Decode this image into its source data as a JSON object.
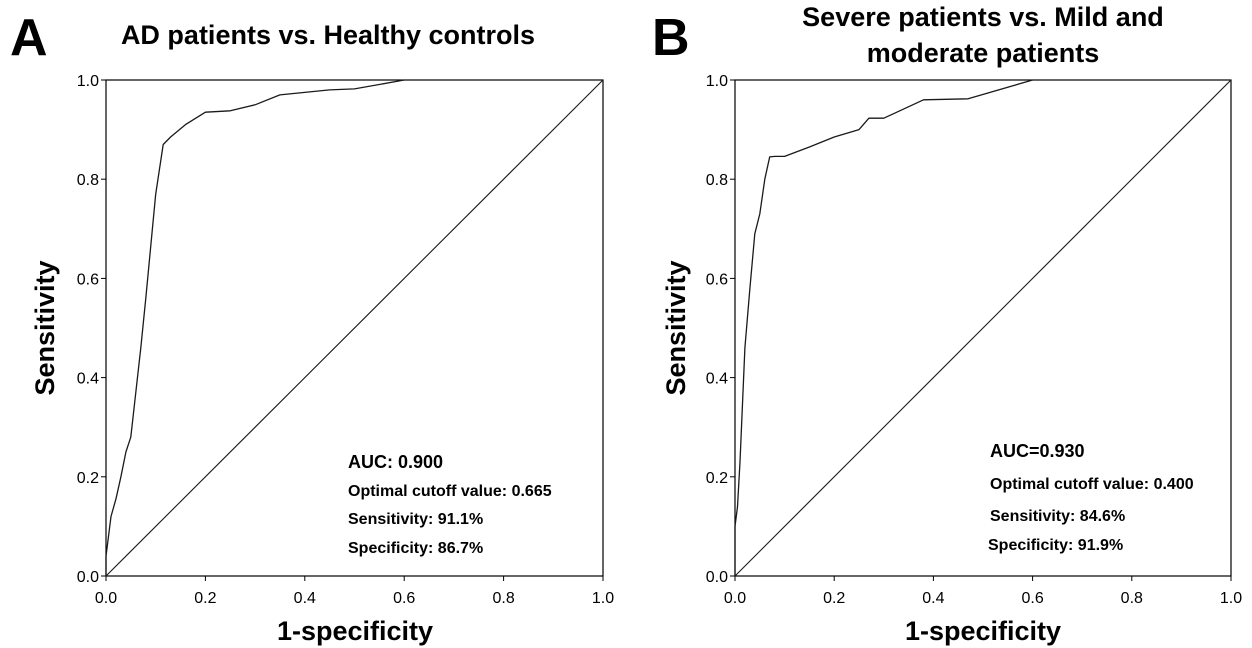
{
  "chart_data": [
    {
      "type": "line",
      "panel": "A",
      "title": "AD patients vs. Healthy controls",
      "title_lines": [
        "AD patients vs. Healthy controls"
      ],
      "xlabel": "1-specificity",
      "ylabel": "Sensitivity",
      "xlim": [
        0,
        1
      ],
      "ylim": [
        0,
        1
      ],
      "xticks": [
        "0.0",
        "0.2",
        "0.4",
        "0.6",
        "0.8",
        "1.0"
      ],
      "yticks": [
        "0.0",
        "0.2",
        "0.4",
        "0.6",
        "0.8",
        "1.0"
      ],
      "grid": false,
      "legend": "none",
      "annotations": [
        "AUC: 0.900",
        "Optimal cutoff value: 0.665",
        "Sensitivity: 91.1%",
        "Specificity: 86.7%"
      ],
      "series": [
        {
          "role": "roc",
          "x": [
            0,
            0,
            0.01,
            0.02,
            0.03,
            0.04,
            0.05,
            0.07,
            0.08,
            0.1,
            0.115,
            0.13,
            0.16,
            0.2,
            0.25,
            0.3,
            0.35,
            0.4,
            0.45,
            0.5,
            0.6
          ],
          "y": [
            0,
            0.04,
            0.12,
            0.155,
            0.2,
            0.25,
            0.28,
            0.46,
            0.56,
            0.77,
            0.87,
            0.885,
            0.91,
            0.935,
            0.938,
            0.95,
            0.97,
            0.975,
            0.98,
            0.982,
            1.0
          ]
        },
        {
          "role": "reference",
          "x": [
            0,
            1
          ],
          "y": [
            0,
            1
          ]
        }
      ]
    },
    {
      "type": "line",
      "panel": "B",
      "title": "Severe patients vs. Mild and moderate patients",
      "title_lines": [
        "Severe patients vs. Mild and",
        "moderate patients"
      ],
      "xlabel": "1-specificity",
      "ylabel": "Sensitivity",
      "xlim": [
        0,
        1
      ],
      "ylim": [
        0,
        1
      ],
      "xticks": [
        "0.0",
        "0.2",
        "0.4",
        "0.6",
        "0.8",
        "1.0"
      ],
      "yticks": [
        "0.0",
        "0.2",
        "0.4",
        "0.6",
        "0.8",
        "1.0"
      ],
      "grid": false,
      "legend": "none",
      "annotations": [
        "AUC=0.930",
        "Optimal cutoff value: 0.400",
        "Sensitivity: 84.6%",
        "Specificity: 91.9%"
      ],
      "series": [
        {
          "role": "roc",
          "x": [
            0,
            0,
            0.005,
            0.01,
            0.02,
            0.03,
            0.04,
            0.05,
            0.06,
            0.07,
            0.08,
            0.09,
            0.1,
            0.15,
            0.2,
            0.25,
            0.27,
            0.3,
            0.38,
            0.47,
            0.6
          ],
          "y": [
            0,
            0.1,
            0.14,
            0.23,
            0.46,
            0.58,
            0.69,
            0.73,
            0.8,
            0.845,
            0.846,
            0.846,
            0.846,
            0.865,
            0.885,
            0.9,
            0.923,
            0.923,
            0.96,
            0.962,
            1.0
          ]
        },
        {
          "role": "reference",
          "x": [
            0,
            1
          ],
          "y": [
            0,
            1
          ]
        }
      ]
    }
  ]
}
